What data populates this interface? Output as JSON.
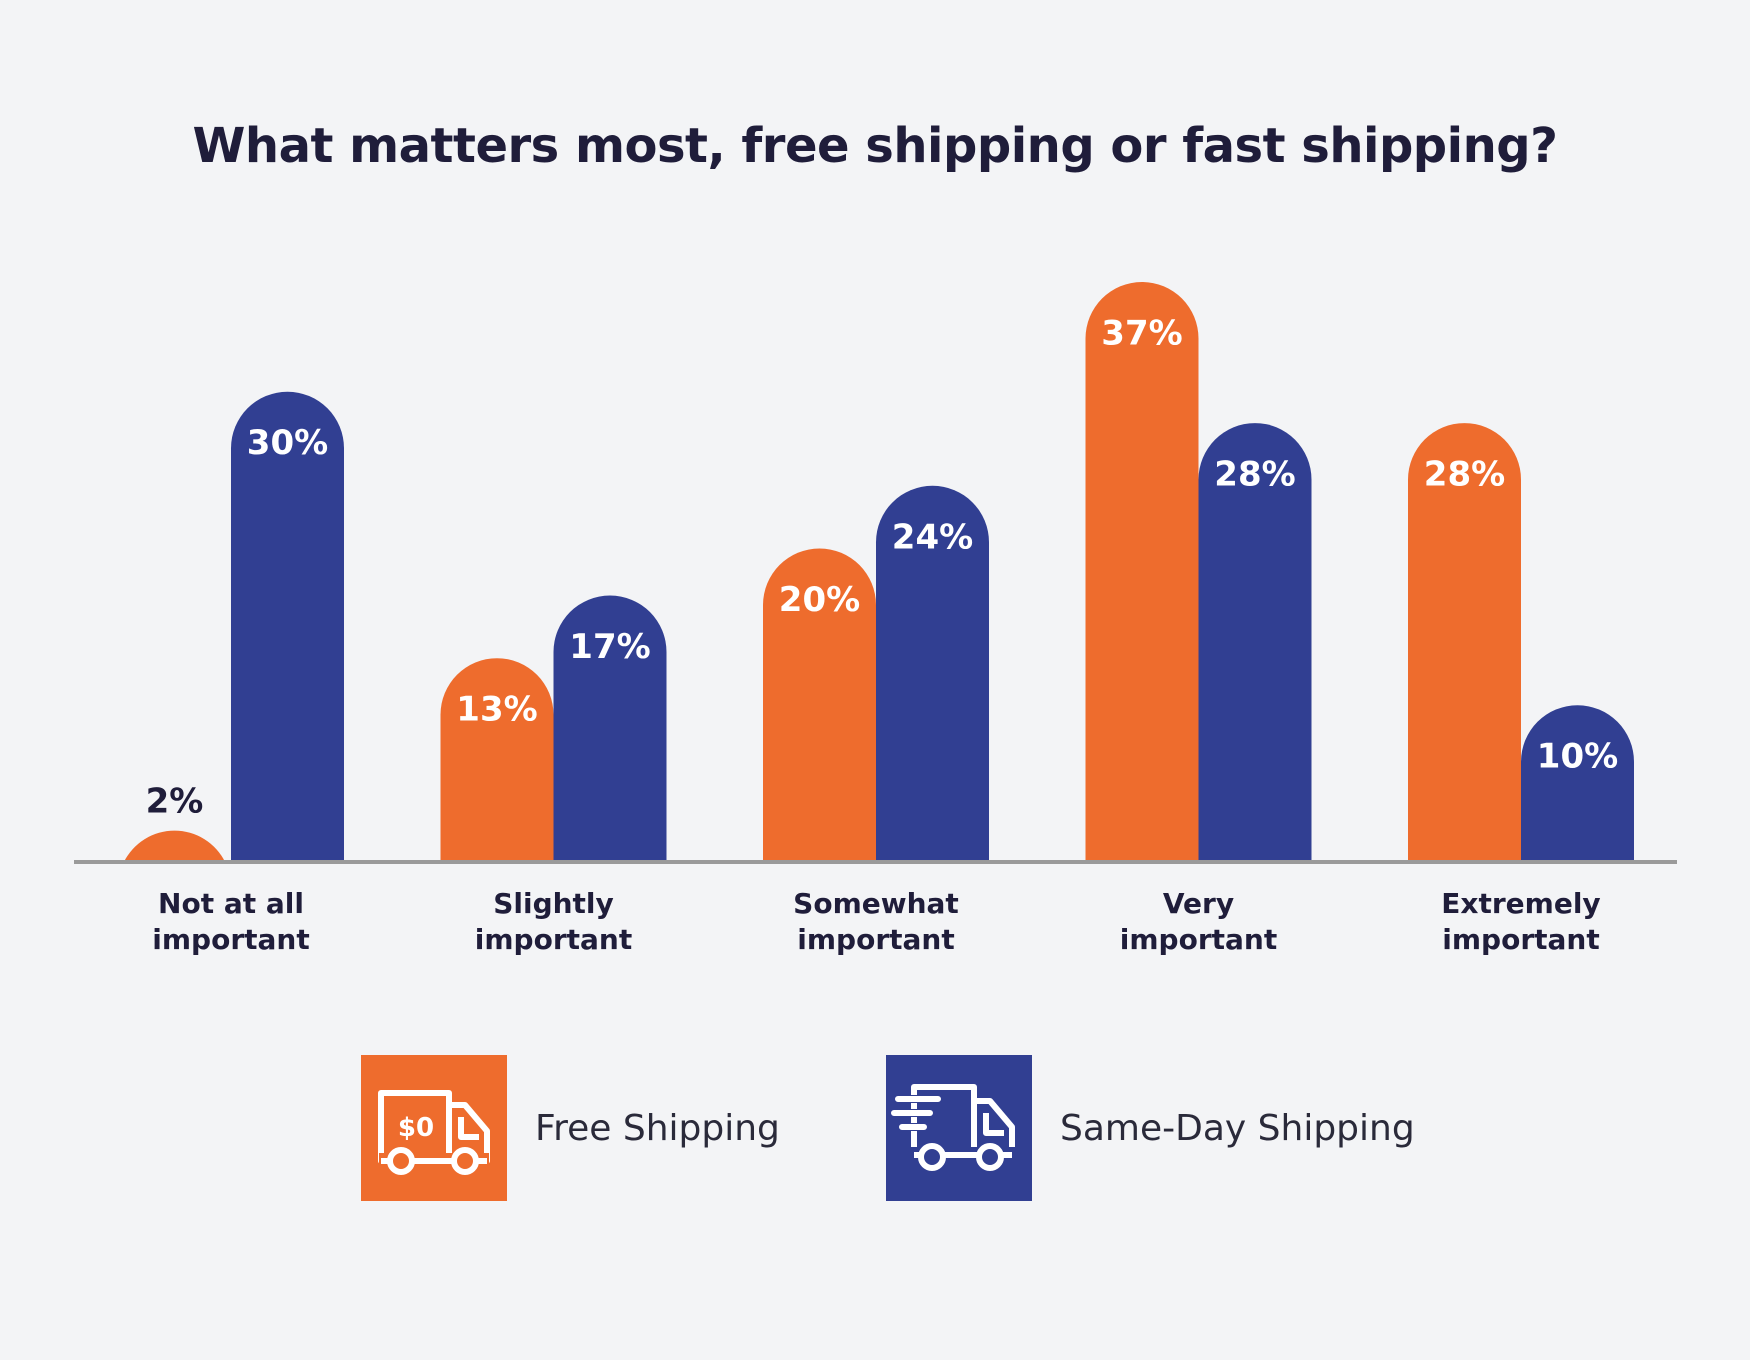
{
  "colors": {
    "background": "#f3f4f6",
    "free_shipping": "#ee6c2d",
    "same_day_shipping": "#313f92",
    "axis": "#9a9a9a",
    "label_dark": "#1f1d3a",
    "label_light": "#ffffff"
  },
  "chart_data": {
    "type": "bar",
    "title": "What matters most, free shipping or fast shipping?",
    "categories": [
      [
        "Not at all",
        "important"
      ],
      [
        "Slightly",
        "important"
      ],
      [
        "Somewhat",
        "important"
      ],
      [
        "Very",
        "important"
      ],
      [
        "Extremely",
        "important"
      ]
    ],
    "series": [
      {
        "name": "Free Shipping",
        "color": "#ee6c2d",
        "values": [
          2,
          13,
          20,
          37,
          28
        ],
        "labels": [
          "2%",
          "13%",
          "20%",
          "37%",
          "28%"
        ]
      },
      {
        "name": "Same-Day Shipping",
        "color": "#313f92",
        "values": [
          30,
          17,
          24,
          28,
          10
        ],
        "labels": [
          "30%",
          "17%",
          "24%",
          "28%",
          "10%"
        ]
      }
    ],
    "ylim": [
      0,
      37
    ],
    "grid": false,
    "legend_position": "bottom"
  },
  "legend": {
    "free_shipping": {
      "label": "Free Shipping",
      "icon": "truck-dollar-icon",
      "icon_text": "$0"
    },
    "same_day_shipping": {
      "label": "Same-Day Shipping",
      "icon": "fast-truck-icon"
    }
  }
}
